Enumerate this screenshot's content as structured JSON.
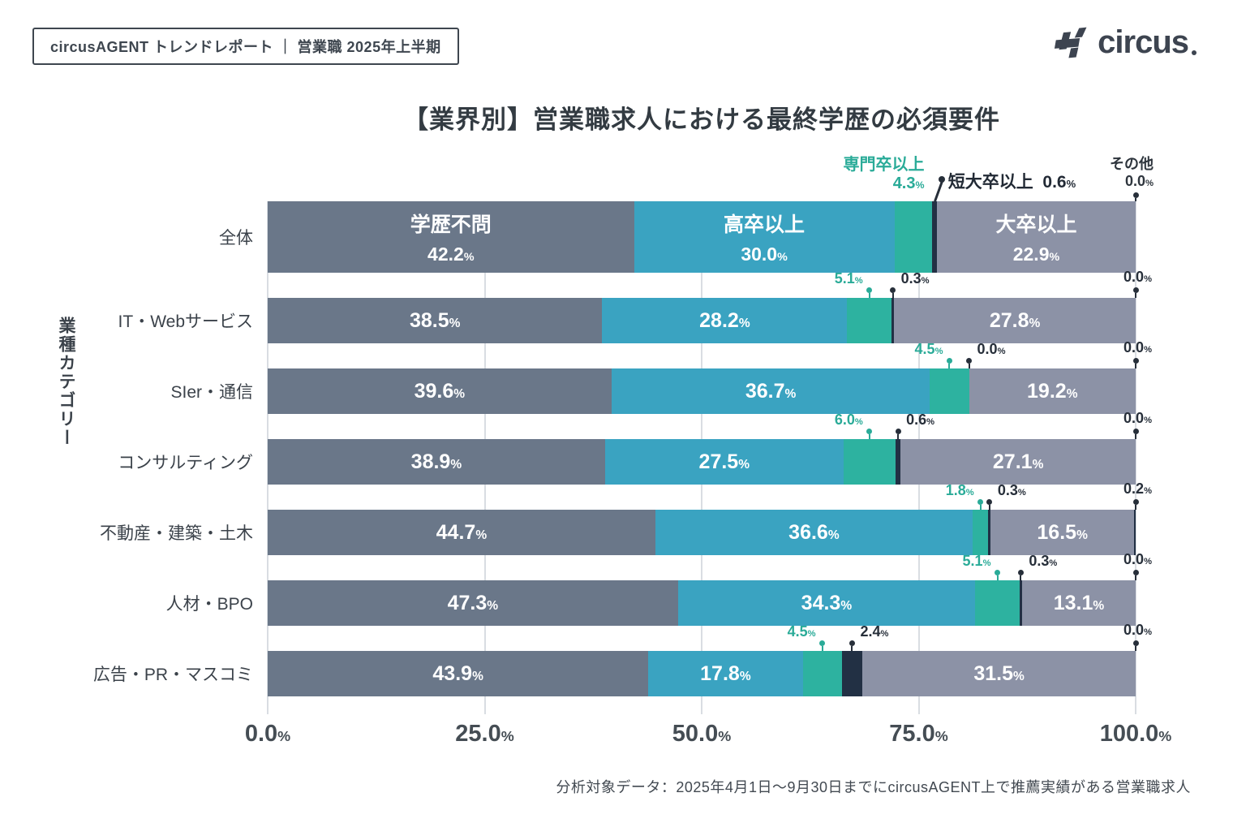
{
  "header": {
    "badge": "circusAGENT トレンドレポート ｜ 営業職 2025年上半期",
    "logo_text": "circus"
  },
  "chart_data": {
    "type": "bar",
    "subtype": "horizontal-stacked",
    "title": "【業界別】営業職求人における最終学歴の必須要件",
    "ylabel": "業種カテゴリー",
    "xlabel": "",
    "x_ticks": [
      "0.0",
      "25.0",
      "50.0",
      "75.0",
      "100.0"
    ],
    "x_unit": "%",
    "xlim": [
      0,
      100
    ],
    "grid": true,
    "legend_position": "inline-annotations",
    "series": [
      {
        "key": "no-requirement",
        "name": "学歴不問",
        "color": "#6a7789"
      },
      {
        "key": "high-school",
        "name": "高卒以上",
        "color": "#3aa3c1"
      },
      {
        "key": "vocational",
        "name": "専門卒以上",
        "color": "#2db2a0"
      },
      {
        "key": "junior-college",
        "name": "短大卒以上",
        "color": "#223044"
      },
      {
        "key": "university",
        "name": "大卒以上",
        "color": "#8c92a6"
      },
      {
        "key": "other",
        "name": "その他",
        "color": "#223044"
      }
    ],
    "categories": [
      "全体",
      "IT・Webサービス",
      "SIer・通信",
      "コンサルティング",
      "不動産・建築・土木",
      "人材・BPO",
      "広告・PR・マスコミ"
    ],
    "rows": [
      {
        "label": "全体",
        "values": [
          42.2,
          30.0,
          4.3,
          0.6,
          22.9,
          0.0
        ]
      },
      {
        "label": "IT・Webサービス",
        "values": [
          38.5,
          28.2,
          5.1,
          0.3,
          27.8,
          0.0
        ]
      },
      {
        "label": "SIer・通信",
        "values": [
          39.6,
          36.7,
          4.5,
          0.0,
          19.2,
          0.0
        ]
      },
      {
        "label": "コンサルティング",
        "values": [
          38.9,
          27.5,
          6.0,
          0.6,
          27.1,
          0.0
        ]
      },
      {
        "label": "不動産・建築・土木",
        "values": [
          44.7,
          36.6,
          1.8,
          0.3,
          16.5,
          0.2
        ]
      },
      {
        "label": "人材・BPO",
        "values": [
          47.3,
          34.3,
          5.1,
          0.3,
          13.1,
          0.0
        ]
      },
      {
        "label": "広告・PR・マスコミ",
        "values": [
          43.9,
          17.8,
          4.5,
          2.4,
          31.5,
          0.0
        ]
      }
    ],
    "colors": {
      "annotation_green": "#2aab98",
      "annotation_dark": "#272f3a",
      "gridline": "#d9dde2",
      "bar_label": "#ffffff"
    }
  },
  "footer": {
    "note": "分析対象データ：2025年4月1日〜9月30日までにcircusAGENT上で推薦実績がある営業職求人"
  }
}
